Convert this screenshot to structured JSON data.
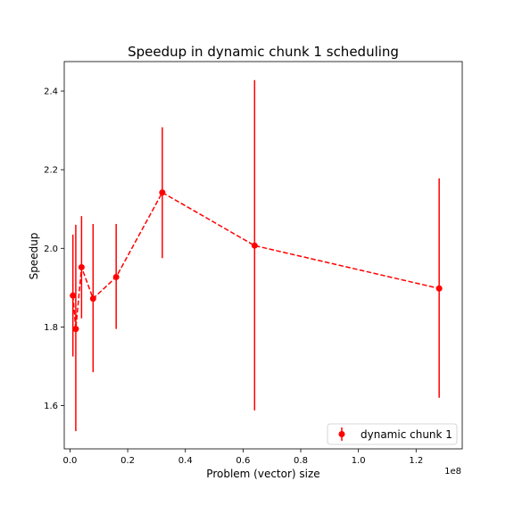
{
  "chart_data": {
    "type": "line",
    "title": "Speedup in dynamic chunk 1 scheduling",
    "xlabel": "Problem (vector) size",
    "ylabel": "Speedup",
    "x_offset_text": "1e8",
    "xlim": [
      -2000000,
      136000000
    ],
    "ylim": [
      1.49,
      2.475
    ],
    "x_ticks": [
      0,
      20000000,
      40000000,
      60000000,
      80000000,
      100000000,
      120000000
    ],
    "x_tick_labels": [
      "0.0",
      "0.2",
      "0.4",
      "0.6",
      "0.8",
      "1.0",
      "1.2"
    ],
    "y_ticks": [
      1.6,
      1.8,
      2.0,
      2.2,
      2.4
    ],
    "y_tick_labels": [
      "1.6",
      "1.8",
      "2.0",
      "2.2",
      "2.4"
    ],
    "grid": false,
    "legend": {
      "position": "bottom-right"
    },
    "series": [
      {
        "name": "dynamic chunk 1",
        "color": "#ff0000",
        "marker": "circle",
        "linestyle": "dashed",
        "error_bars": true,
        "points": [
          {
            "x": 1000000,
            "y": 1.88,
            "ylo": 1.725,
            "yhi": 2.035
          },
          {
            "x": 2000000,
            "y": 1.795,
            "ylo": 1.535,
            "yhi": 2.06
          },
          {
            "x": 4000000,
            "y": 1.952,
            "ylo": 1.822,
            "yhi": 2.082
          },
          {
            "x": 8000000,
            "y": 1.872,
            "ylo": 1.685,
            "yhi": 2.062
          },
          {
            "x": 16000000,
            "y": 1.927,
            "ylo": 1.795,
            "yhi": 2.062
          },
          {
            "x": 32000000,
            "y": 2.142,
            "ylo": 1.975,
            "yhi": 2.308
          },
          {
            "x": 64000000,
            "y": 2.007,
            "ylo": 1.588,
            "yhi": 2.428
          },
          {
            "x": 128000000,
            "y": 1.898,
            "ylo": 1.62,
            "yhi": 2.178
          }
        ]
      }
    ]
  }
}
